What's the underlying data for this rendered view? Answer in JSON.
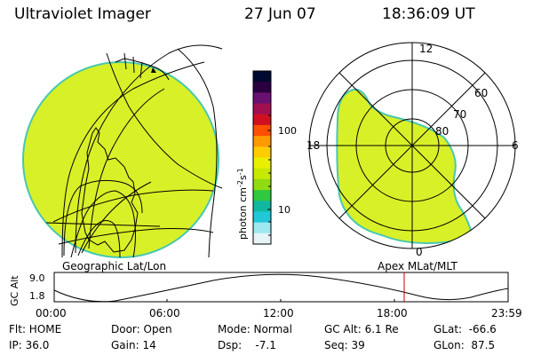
{
  "header": {
    "instrument": "Ultraviolet Imager",
    "date": "27 Jun 07",
    "time": "18:36:09 UT"
  },
  "colorbar": {
    "unit": "photon cm",
    "unit_exp1": "-2",
    "unit_s": "s",
    "unit_exp2": "-1",
    "ticks": [
      "100",
      "10"
    ],
    "colors": [
      "#000a30",
      "#2a0040",
      "#6a1070",
      "#a01050",
      "#d01020",
      "#ff5000",
      "#ff9900",
      "#ffcc00",
      "#e8f000",
      "#c8e800",
      "#90dc10",
      "#30c840",
      "#10b8a0",
      "#20c8d8",
      "#a0e8f0",
      "#e6f4f8"
    ]
  },
  "left_map": {
    "caption": "Geographic Lat/Lon",
    "fill_color": "#d8f028",
    "edge_color": "#48c8b0"
  },
  "right_map": {
    "caption": "Apex MLat/MLT",
    "mlt_labels": {
      "top": "12",
      "left": "18",
      "right": "6",
      "bottom": "0"
    },
    "lat_labels": [
      "60",
      "70",
      "80"
    ],
    "fill_color": "#d8f028",
    "edge_color": "#48c8b0"
  },
  "altitude_plot": {
    "ylabel": "GC Alt",
    "yticks": [
      "9.0",
      "1.8"
    ],
    "xticks": [
      "00:00",
      "06:00",
      "12:00",
      "18:00",
      "23:59"
    ],
    "marker_color": "#c00000"
  },
  "status": {
    "filter": "Flt: HOME",
    "ip": "IP: 36.0",
    "door": "Door: Open",
    "gain": "Gain: 14",
    "mode": "Mode: Normal",
    "dsp": "Dsp:    -7.1",
    "gc_alt": "GC Alt: 6.1 Re",
    "seq": "Seq: 39",
    "glat": "GLat:  -66.6",
    "glon": "GLon:  87.5"
  }
}
